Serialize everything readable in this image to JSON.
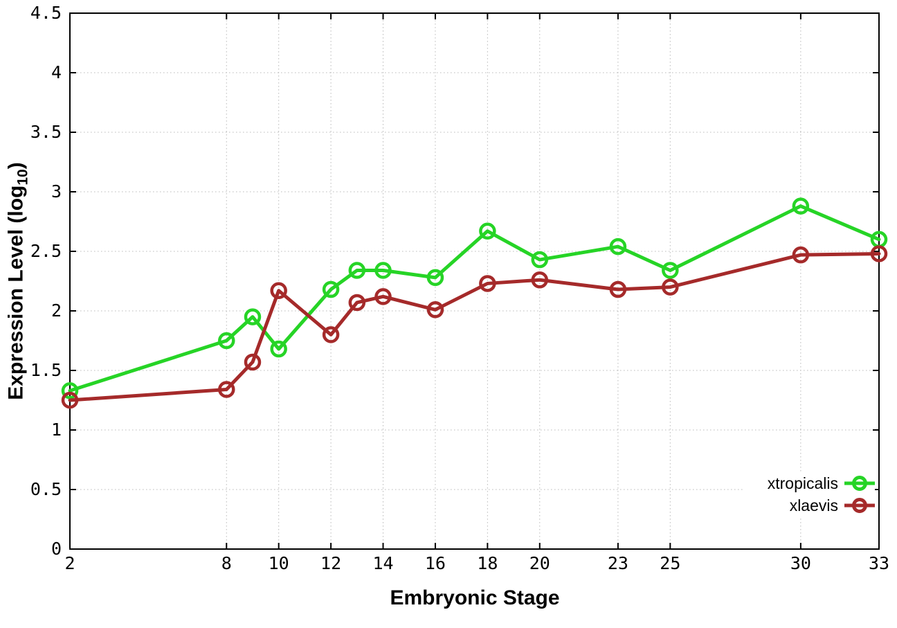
{
  "chart_data": {
    "type": "line",
    "title": "",
    "xlabel": "Embryonic Stage",
    "ylabel": "Expression Level (log10)",
    "ylabel_parts": {
      "main": "Expression Level (log",
      "sub": "10",
      "end": ")"
    },
    "x": [
      2,
      8,
      9,
      10,
      12,
      13,
      14,
      16,
      18,
      20,
      23,
      25,
      30,
      33
    ],
    "series": [
      {
        "name": "xtropicalis",
        "color": "#26d426",
        "values": [
          1.33,
          1.75,
          1.95,
          1.68,
          2.18,
          2.34,
          2.34,
          2.28,
          2.67,
          2.43,
          2.54,
          2.34,
          2.88,
          2.6
        ]
      },
      {
        "name": "xlaevis",
        "color": "#a52a2a",
        "values": [
          1.25,
          1.34,
          1.57,
          2.17,
          1.8,
          2.07,
          2.12,
          2.01,
          2.23,
          2.26,
          2.18,
          2.2,
          2.47,
          2.48
        ]
      }
    ],
    "xlim": [
      2,
      33
    ],
    "ylim": [
      0,
      4.5
    ],
    "xticks": [
      2,
      8,
      10,
      12,
      14,
      16,
      18,
      20,
      23,
      25,
      30,
      33
    ],
    "xtick_labels": [
      "2",
      "8",
      "10",
      "12",
      "14",
      "16",
      "18",
      "20",
      "23",
      "25",
      "30",
      "33"
    ],
    "yticks": [
      0,
      0.5,
      1,
      1.5,
      2,
      2.5,
      3,
      3.5,
      4,
      4.5
    ],
    "ytick_labels": [
      "0",
      "0.5",
      "1",
      "1.5",
      "2",
      "2.5",
      "3",
      "3.5",
      "4",
      "4.5"
    ],
    "grid": true,
    "grid_style": "dotted",
    "grid_color": "#b8b8b8",
    "border_color": "#000000",
    "background": "#ffffff",
    "marker": "open-circle",
    "legend_position": "bottom-right",
    "line_width": 5,
    "marker_radius": 10
  }
}
